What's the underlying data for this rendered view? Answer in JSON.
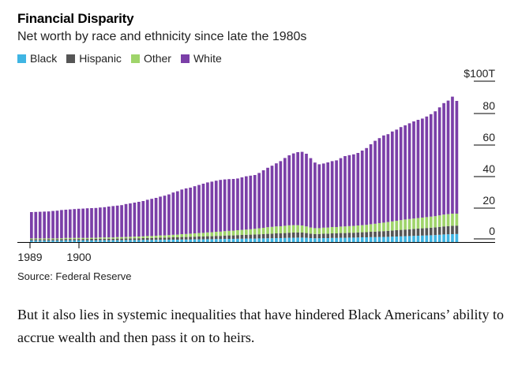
{
  "title": "Financial Disparity",
  "subtitle": "Net worth by race and ethnicity since late the 1980s",
  "source": "Source: Federal Reserve",
  "body_text": "But it also lies in systemic inequalities that have hindered Black Americans’ ability to accrue wealth and then pass it on to heirs.",
  "chart_data": {
    "type": "bar",
    "stacked": true,
    "legend_position": "top-left",
    "grid": false,
    "xlabels": [
      "1989",
      "1900"
    ],
    "yticks": [
      "$100T",
      "80",
      "60",
      "40",
      "20",
      "0"
    ],
    "ylim": [
      0,
      110
    ],
    "series": [
      {
        "name": "Black",
        "color": "#3fb5e3",
        "values": [
          0.9,
          0.9,
          0.9,
          0.9,
          0.9,
          0.9,
          0.9,
          0.9,
          1.0,
          1.0,
          1.0,
          1.0,
          1.0,
          1.0,
          1.0,
          1.0,
          1.1,
          1.1,
          1.1,
          1.1,
          1.1,
          1.1,
          1.2,
          1.2,
          1.2,
          1.2,
          1.3,
          1.3,
          1.3,
          1.4,
          1.4,
          1.4,
          1.5,
          1.5,
          1.5,
          1.6,
          1.6,
          1.6,
          1.7,
          1.7,
          1.7,
          1.8,
          1.8,
          1.9,
          1.9,
          2.0,
          2.0,
          2.0,
          2.1,
          2.1,
          2.2,
          2.2,
          2.2,
          2.3,
          2.3,
          2.4,
          2.4,
          2.5,
          2.5,
          2.6,
          2.7,
          2.7,
          2.8,
          2.8,
          2.7,
          2.5,
          2.4,
          2.4,
          2.5,
          2.5,
          2.6,
          2.6,
          2.7,
          2.7,
          2.8,
          2.8,
          2.9,
          3.0,
          3.0,
          3.1,
          3.1,
          3.2,
          3.2,
          3.3,
          3.4,
          3.5,
          3.6,
          3.7,
          3.8,
          3.9,
          4.0,
          4.1,
          4.2,
          4.3,
          4.4,
          4.6,
          4.8,
          4.9,
          5.0,
          5.1
        ]
      },
      {
        "name": "Hispanic",
        "color": "#555555",
        "values": [
          0.8,
          0.8,
          0.8,
          0.8,
          0.8,
          0.8,
          0.8,
          0.9,
          0.9,
          0.9,
          0.9,
          0.9,
          0.9,
          0.9,
          1.0,
          1.0,
          1.0,
          1.0,
          1.0,
          1.0,
          1.1,
          1.1,
          1.1,
          1.1,
          1.2,
          1.2,
          1.2,
          1.3,
          1.3,
          1.3,
          1.4,
          1.4,
          1.4,
          1.5,
          1.5,
          1.6,
          1.6,
          1.7,
          1.7,
          1.8,
          1.8,
          1.9,
          1.9,
          2.0,
          2.0,
          2.1,
          2.2,
          2.2,
          2.3,
          2.4,
          2.4,
          2.5,
          2.6,
          2.6,
          2.7,
          2.8,
          2.9,
          3.0,
          3.0,
          3.1,
          3.2,
          3.3,
          3.3,
          3.2,
          3.0,
          2.8,
          2.7,
          2.7,
          2.8,
          2.8,
          2.9,
          2.9,
          3.0,
          3.0,
          3.1,
          3.1,
          3.2,
          3.2,
          3.3,
          3.4,
          3.5,
          3.6,
          3.7,
          3.8,
          3.9,
          4.0,
          4.1,
          4.2,
          4.3,
          4.4,
          4.5,
          4.6,
          4.7,
          4.8,
          4.9,
          5.0,
          5.1,
          5.2,
          5.3,
          5.3
        ]
      },
      {
        "name": "Other",
        "color": "#9fd46a",
        "values": [
          0.6,
          0.6,
          0.6,
          0.6,
          0.6,
          0.6,
          0.6,
          0.6,
          0.7,
          0.7,
          0.7,
          0.7,
          0.7,
          0.7,
          0.7,
          0.7,
          0.8,
          0.8,
          0.8,
          0.8,
          0.9,
          0.9,
          0.9,
          1.0,
          1.0,
          1.1,
          1.1,
          1.2,
          1.2,
          1.3,
          1.4,
          1.4,
          1.5,
          1.6,
          1.7,
          1.8,
          1.9,
          2.0,
          2.1,
          2.2,
          2.3,
          2.4,
          2.5,
          2.6,
          2.7,
          2.8,
          2.9,
          3.0,
          3.1,
          3.2,
          3.3,
          3.4,
          3.6,
          3.8,
          4.0,
          4.2,
          4.3,
          4.4,
          4.5,
          4.6,
          4.7,
          4.7,
          4.6,
          4.5,
          4.2,
          3.9,
          3.7,
          3.7,
          3.8,
          3.9,
          4.0,
          4.0,
          4.1,
          4.2,
          4.2,
          4.3,
          4.4,
          4.5,
          4.6,
          4.8,
          5.0,
          5.2,
          5.4,
          5.6,
          5.8,
          6.0,
          6.2,
          6.4,
          6.5,
          6.6,
          6.7,
          6.8,
          6.9,
          7.0,
          7.1,
          7.3,
          7.5,
          7.6,
          7.7,
          7.6
        ]
      },
      {
        "name": "White",
        "color": "#7b3fa8",
        "values": [
          16.7,
          16.8,
          16.9,
          17.0,
          17.1,
          17.4,
          17.6,
          17.9,
          17.9,
          18.1,
          18.3,
          18.5,
          18.6,
          18.8,
          18.8,
          18.9,
          19.0,
          19.2,
          19.6,
          19.9,
          20.0,
          20.3,
          20.9,
          21.2,
          21.6,
          22.0,
          22.4,
          23.0,
          23.6,
          24.0,
          24.6,
          25.2,
          25.8,
          26.8,
          27.5,
          28.3,
          28.9,
          29.2,
          29.9,
          30.5,
          31.2,
          31.7,
          32.1,
          32.4,
          32.8,
          32.8,
          32.8,
          32.8,
          32.8,
          33.3,
          33.8,
          34.0,
          34.1,
          35.1,
          36.5,
          37.7,
          38.8,
          40.0,
          41.3,
          43.0,
          44.4,
          45.5,
          46.3,
          46.7,
          46.1,
          44.0,
          41.6,
          40.5,
          40.7,
          41.3,
          41.8,
          42.3,
          43.4,
          44.6,
          45.0,
          45.4,
          46.0,
          47.3,
          48.7,
          50.7,
          52.6,
          53.9,
          55.3,
          55.7,
          57.0,
          57.8,
          59.0,
          59.7,
          60.7,
          61.6,
          62.3,
          62.8,
          63.8,
          65.0,
          66.5,
          68.5,
          70.7,
          72.0,
          74.2,
          71.5
        ]
      }
    ]
  }
}
